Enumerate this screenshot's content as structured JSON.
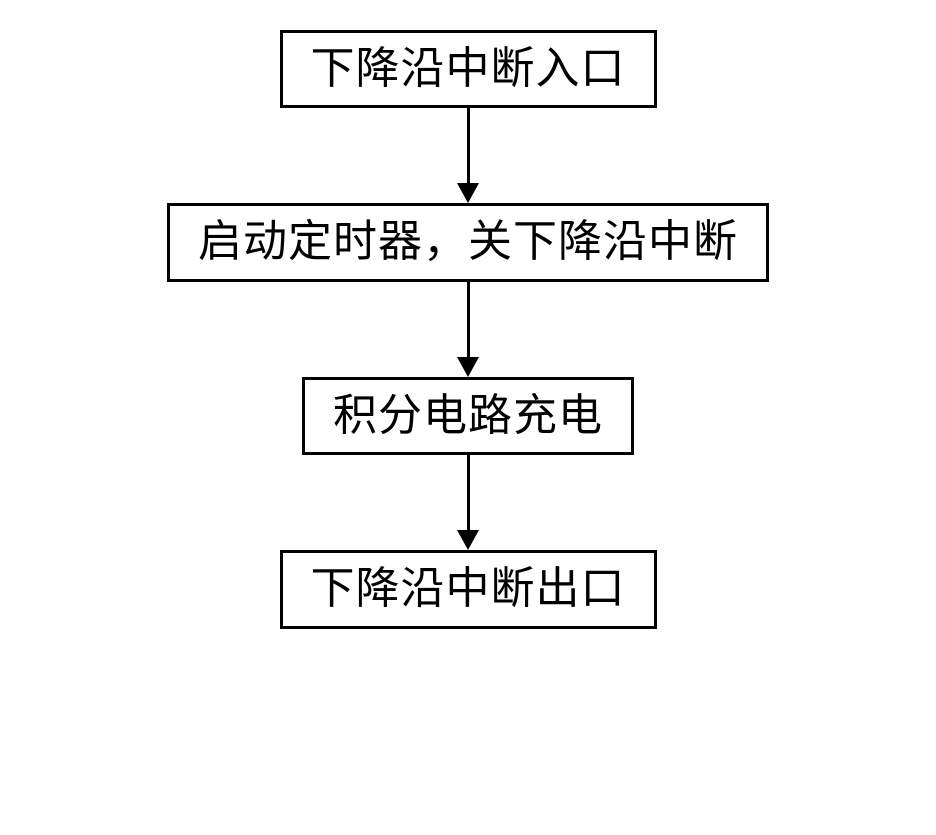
{
  "flowchart": {
    "type": "flowchart",
    "background_color": "#ffffff",
    "box_border_color": "#000000",
    "box_border_width": 3,
    "box_background_color": "#ffffff",
    "text_color": "#000000",
    "font_size": 44,
    "font_family": "SimSun",
    "arrow_color": "#000000",
    "arrow_line_width": 3,
    "arrow_gap_height": 95,
    "arrow_head_width": 22,
    "arrow_head_height": 20,
    "box_padding_vertical": 12,
    "box_padding_horizontal": 28,
    "nodes": [
      {
        "id": "node1",
        "label": "下降沿中断入口"
      },
      {
        "id": "node2",
        "label": "启动定时器，关下降沿中断"
      },
      {
        "id": "node3",
        "label": "积分电路充电"
      },
      {
        "id": "node4",
        "label": "下降沿中断出口"
      }
    ],
    "edges": [
      {
        "from": "node1",
        "to": "node2"
      },
      {
        "from": "node2",
        "to": "node3"
      },
      {
        "from": "node3",
        "to": "node4"
      }
    ]
  }
}
